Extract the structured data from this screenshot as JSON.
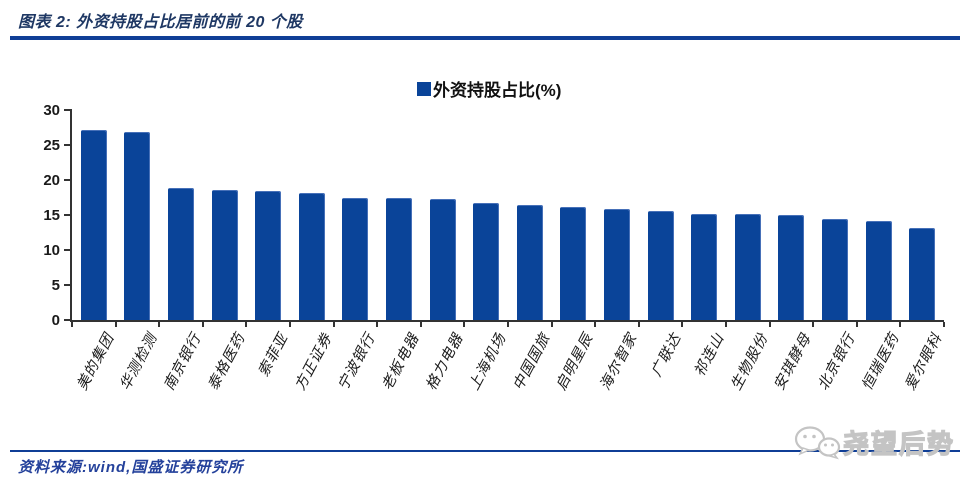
{
  "header": {
    "title": "图表 2:  外资持股占比居前的前 20 个股"
  },
  "chart_data": {
    "type": "bar",
    "title": "外资持股占比居前的前 20 个股",
    "legend": "外资持股占比(%)",
    "legend_position": "top-center",
    "grid": false,
    "categories": [
      "美的集团",
      "华测检测",
      "南京银行",
      "泰格医药",
      "索菲亚",
      "方正证券",
      "宁波银行",
      "老板电器",
      "格力电器",
      "上海机场",
      "中国国旅",
      "启明星辰",
      "海尔智家",
      "广联达",
      "祁连山",
      "生物股份",
      "安琪酵母",
      "北京银行",
      "恒瑞医药",
      "爱尔眼科"
    ],
    "values": [
      27.1,
      26.9,
      18.8,
      18.6,
      18.5,
      18.2,
      17.5,
      17.4,
      17.3,
      16.7,
      16.4,
      16.2,
      15.9,
      15.6,
      15.2,
      15.1,
      15.0,
      14.4,
      14.1,
      13.2
    ],
    "ylim": [
      0,
      30
    ],
    "yticks": [
      0,
      5,
      10,
      15,
      20,
      25,
      30
    ],
    "xlabel": "",
    "ylabel": "",
    "bar_color": "#0A4499",
    "axis_color": "#333333"
  },
  "footer": {
    "source": "资料来源:wind,国盛证券研究所"
  },
  "watermark": {
    "icon": "wechat-icon",
    "text": "尧望后势"
  },
  "colors": {
    "accent_blue": "#0F3E96",
    "title_blue": "#1F3864",
    "source_blue": "#24419B",
    "watermark_gray": "#c4c4c4"
  }
}
